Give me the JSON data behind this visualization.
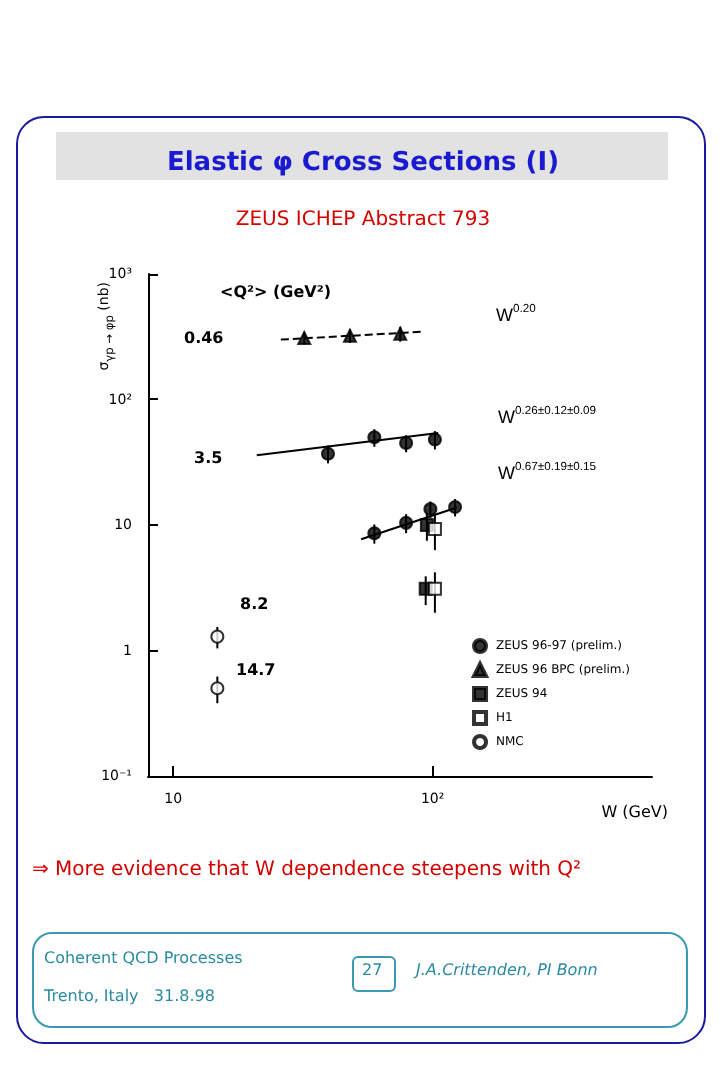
{
  "chart_data": {
    "type": "scatter",
    "title": "Elastic φ Cross Sections (I)",
    "subtitle": "ZEUS ICHEP Abstract 793",
    "xlabel": "W (GeV)",
    "ylabel": "σ$_{γp → φp}$ (nb)",
    "log": "xy",
    "xlim": [
      8,
      700
    ],
    "ylim": [
      0.1,
      1000
    ],
    "xticks": [
      10,
      {
        "value": 100,
        "label": "10²"
      }
    ],
    "yticks": [
      {
        "value": 0.1,
        "label": "10⁻¹"
      },
      1,
      10,
      {
        "value": 100,
        "label": "10²"
      },
      {
        "value": 1000,
        "label": "10³"
      }
    ],
    "grid": false,
    "legend": "bottom right",
    "series": [
      {
        "name": "ZEUS 96-97 (prelim.)",
        "color": "#000000",
        "marker": "circle",
        "x": [
          39.5,
          59.6,
          79,
          102,
          59.6,
          79,
          98,
          122
        ],
        "values": [
          37,
          50,
          45,
          48,
          8.6,
          10.4,
          13.4,
          13.9
        ],
        "errors": [
          6,
          8,
          7,
          8,
          1.5,
          1.8,
          2,
          2.2
        ]
      },
      {
        "name": "ZEUS 96 BPC (prelim.)",
        "color": "#000000",
        "marker": "triangle",
        "x": [
          32,
          48,
          75
        ],
        "values": [
          309,
          322,
          334
        ],
        "errors": [
          35,
          40,
          45
        ]
      },
      {
        "name": "ZEUS 94",
        "color": "#000000",
        "marker": "square",
        "x": [
          95,
          94
        ],
        "values": [
          10,
          3.1
        ],
        "errors": [
          2.5,
          0.8
        ]
      },
      {
        "name": "H1",
        "color": "#ffffff",
        "marker": "square",
        "x": [
          102,
          102
        ],
        "values": [
          9.3,
          3.1
        ],
        "errors": [
          3,
          1.1
        ]
      },
      {
        "name": "NMC",
        "color": "#ffffff",
        "marker": "circle",
        "x": [
          14.8,
          14.8
        ],
        "values": [
          1.29,
          0.5
        ],
        "errors": [
          0.25,
          0.12
        ]
      },
      {
        "type": "line",
        "color": "#000000",
        "line_style": "dashed",
        "marker": "none",
        "x": [
          26,
          90
        ],
        "values": [
          300,
          346
        ]
      },
      {
        "type": "line",
        "color": "#000000",
        "line_style": "solid",
        "marker": "none",
        "x": [
          21,
          105
        ],
        "values": [
          36,
          54
        ]
      },
      {
        "type": "line",
        "color": "#000000",
        "line_style": "solid",
        "marker": "none",
        "x": [
          53,
          124
        ],
        "values": [
          7.7,
          13.8
        ]
      }
    ],
    "annotations": [
      "<Q²> (GeV²)",
      "0.46",
      "3.5",
      "8.2",
      "14.7",
      "W$^{0.20}$",
      "W$^{0.26±0.12±0.09}$",
      "W$^{0.67±0.19±0.15}$",
      "⇒ More evidence that W dependence steepens with Q²",
      "Coherent QCD Processes",
      "Trento, Italy   31.8.98",
      "27",
      "J.A.Crittenden, PI Bonn"
    ]
  }
}
